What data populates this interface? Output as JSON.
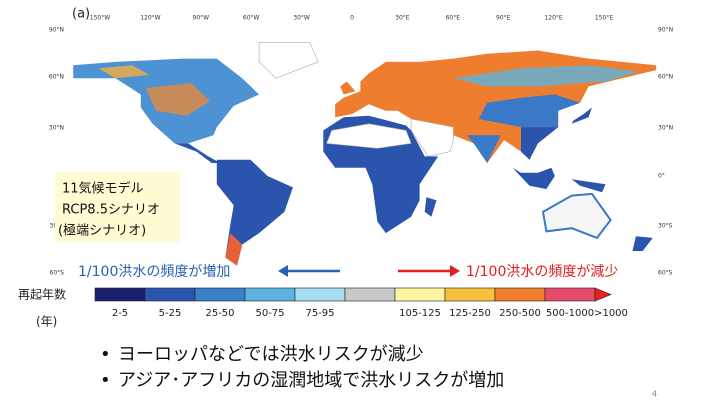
{
  "panel_label": "(a)",
  "map": {
    "longitude_labels": [
      "150°W",
      "120°W",
      "90°W",
      "60°W",
      "30°W",
      "0",
      "30°E",
      "60°E",
      "90°E",
      "120°E",
      "150°E"
    ],
    "latitude_labels": [
      "90°N",
      "60°N",
      "30°N",
      "0°",
      "30°S",
      "60°S"
    ]
  },
  "info_box": [
    "11気候モデル",
    "RCP8.5シナリオ",
    "(極端シナリオ)"
  ],
  "arrows": {
    "increase": "1/100洪水の頻度が増加",
    "decrease": "1/100洪水の頻度が減少"
  },
  "legend": {
    "title": "再起年数",
    "unit": "(年)",
    "items": [
      {
        "label": "2-5",
        "color": "#1b1f6e"
      },
      {
        "label": "5-25",
        "color": "#2b55ad"
      },
      {
        "label": "25-50",
        "color": "#3a7fc8"
      },
      {
        "label": "50-75",
        "color": "#5db3df"
      },
      {
        "label": "75-95",
        "color": "#a6dcef"
      },
      {
        "label": null,
        "color": "#c8c8c8"
      },
      {
        "label": "105-125",
        "color": "#fff5a0"
      },
      {
        "label": "125-250",
        "color": "#f6c23c"
      },
      {
        "label": "250-500",
        "color": "#f07f2a"
      },
      {
        "label": "500-1000",
        "color": "#e84a6e"
      },
      {
        "label": ">1000",
        "color": "#e82020"
      }
    ]
  },
  "bullets": [
    "ヨーロッパなどでは洪水リスクが減少",
    "アジア･アフリカの湿潤地域で洪水リスクが増加"
  ],
  "page_number": "4"
}
